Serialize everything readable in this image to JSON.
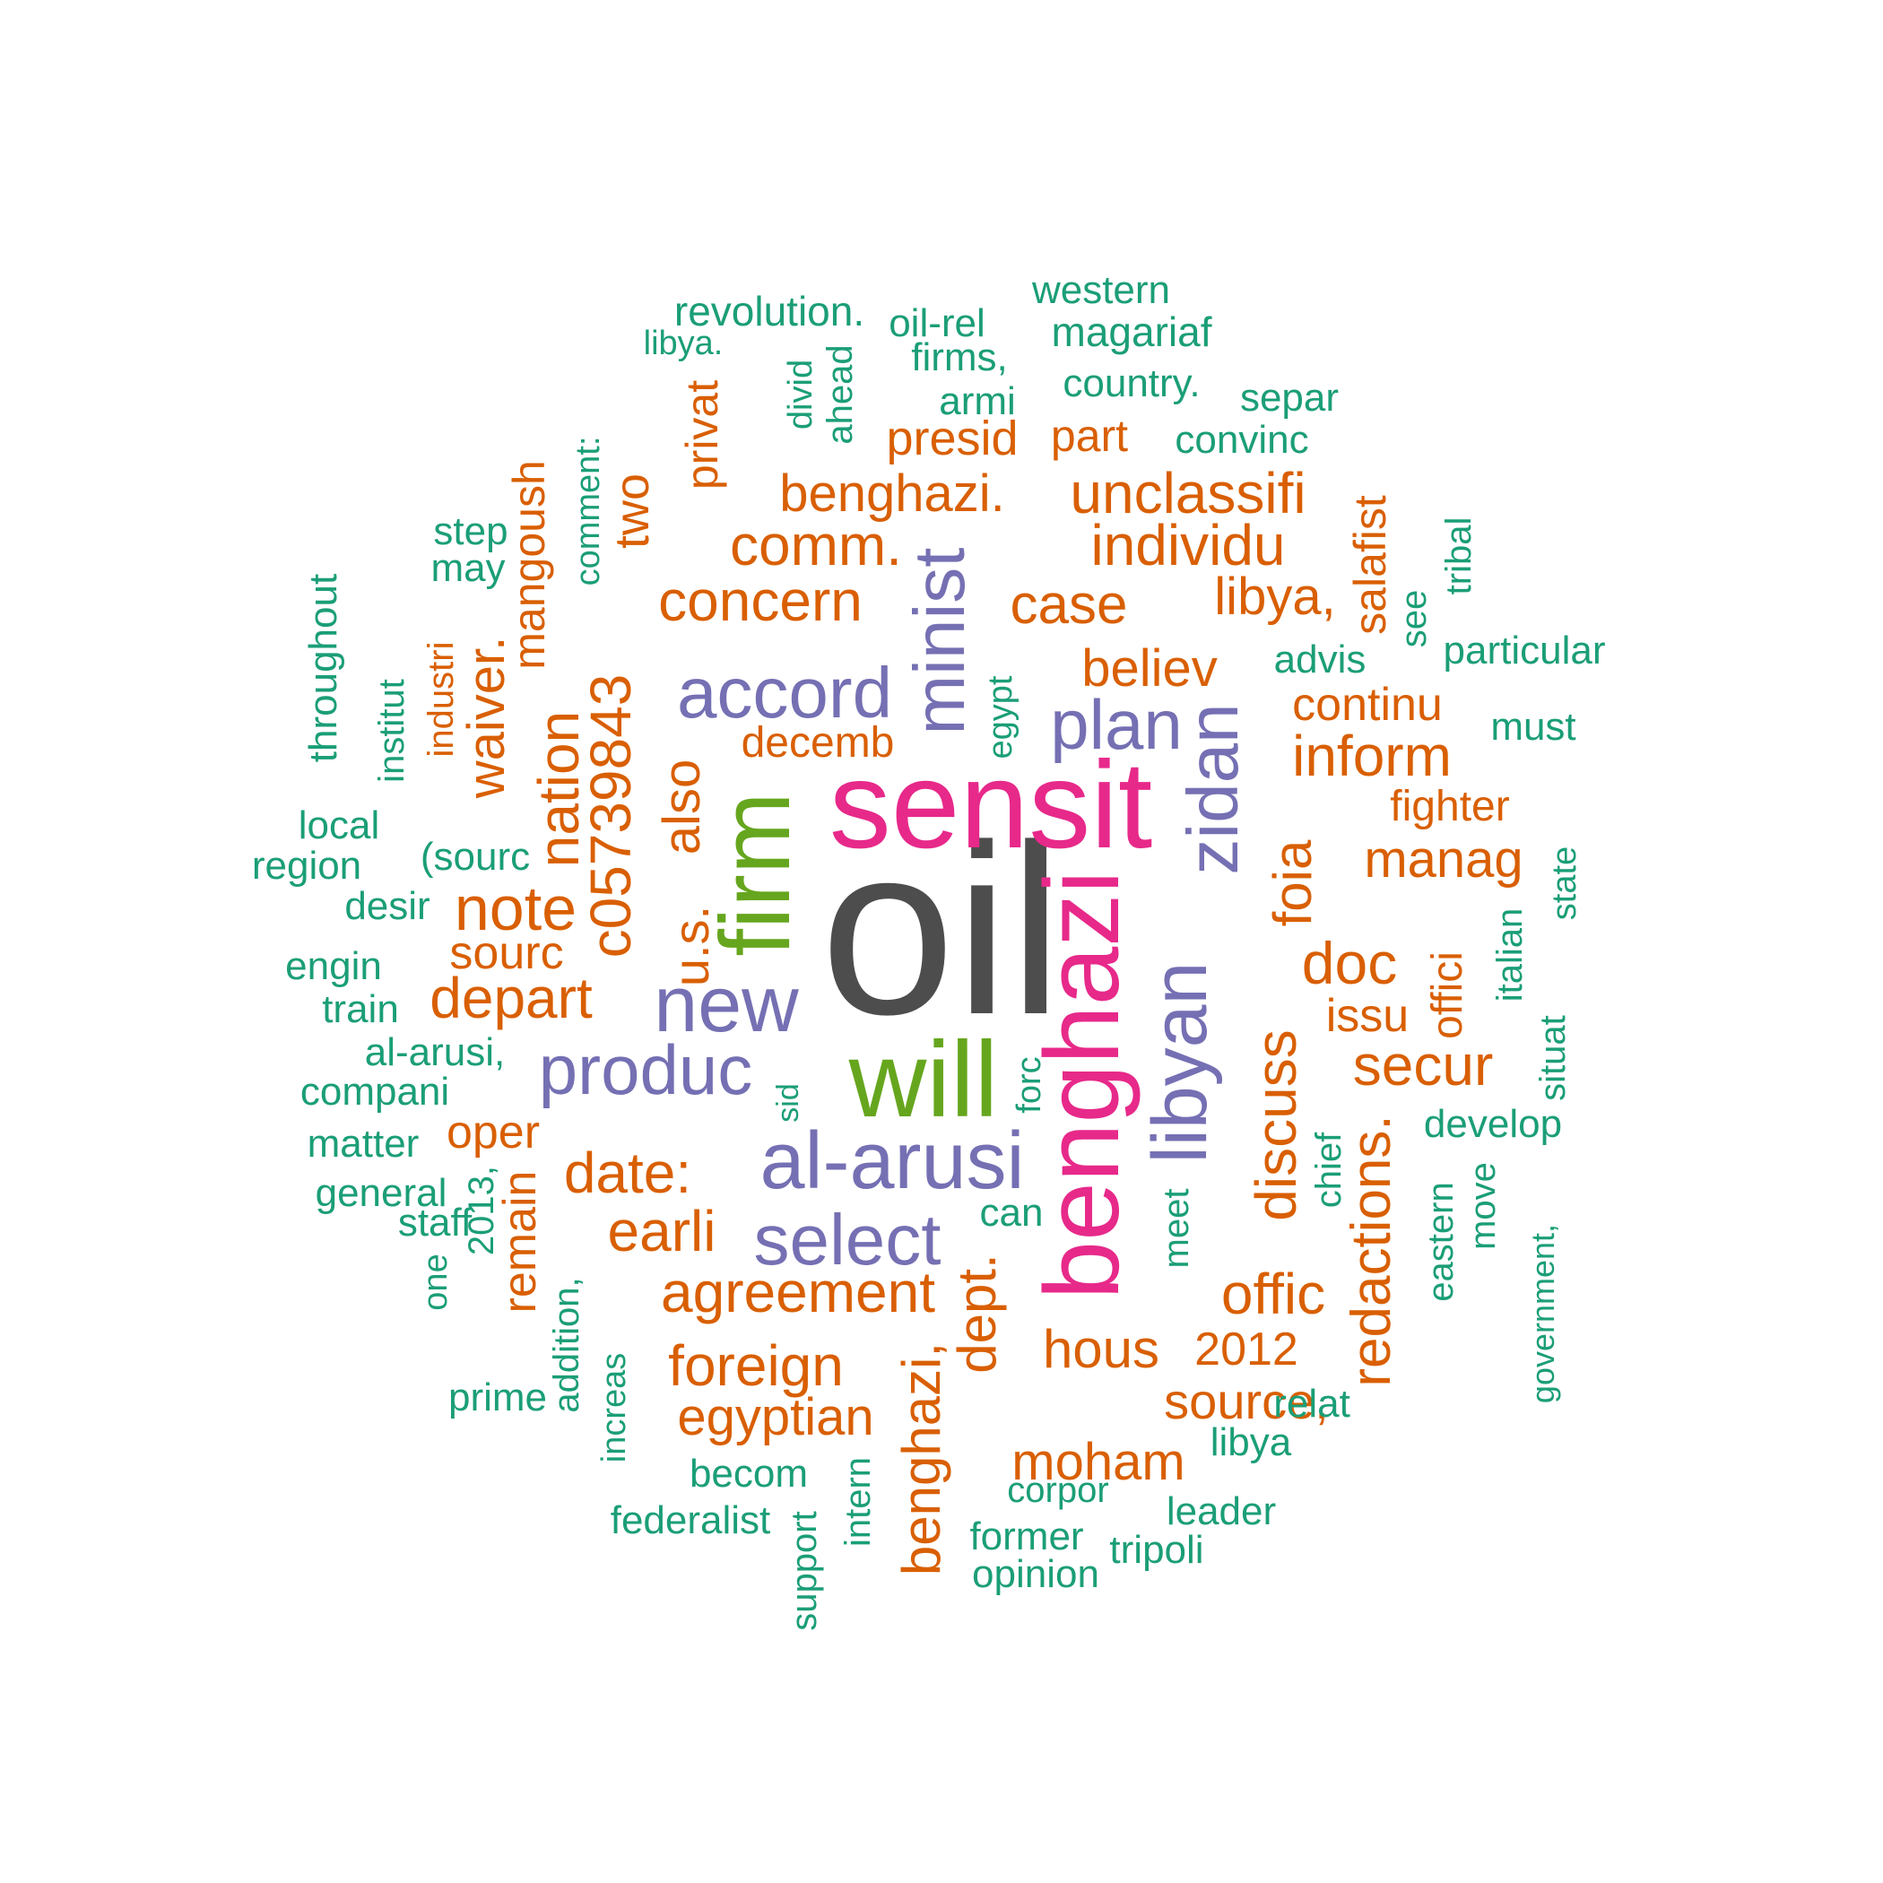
{
  "palette": {
    "dark": "#4d4d4d",
    "pink": "#e7298a",
    "green": "#66a61e",
    "purple": "#7570b3",
    "orange": "#d95f02",
    "teal": "#1b9e77"
  },
  "words": [
    {
      "text": "oil",
      "color": "dark"
    },
    {
      "text": "sensit",
      "color": "pink"
    },
    {
      "text": "benghazi",
      "color": "pink"
    },
    {
      "text": "will",
      "color": "green"
    },
    {
      "text": "firm",
      "color": "green"
    },
    {
      "text": "al-arusi",
      "color": "purple"
    },
    {
      "text": "new",
      "color": "purple"
    },
    {
      "text": "produc",
      "color": "purple"
    },
    {
      "text": "select",
      "color": "purple"
    },
    {
      "text": "accord",
      "color": "purple"
    },
    {
      "text": "minist",
      "color": "purple"
    },
    {
      "text": "plan",
      "color": "purple"
    },
    {
      "text": "zidan",
      "color": "purple"
    },
    {
      "text": "libyan",
      "color": "purple"
    },
    {
      "text": "unclassifi",
      "color": "orange"
    },
    {
      "text": "individu",
      "color": "orange"
    },
    {
      "text": "benghazi.",
      "color": "orange"
    },
    {
      "text": "comm.",
      "color": "orange"
    },
    {
      "text": "concern",
      "color": "orange"
    },
    {
      "text": "case",
      "color": "orange"
    },
    {
      "text": "libya,",
      "color": "orange"
    },
    {
      "text": "presid",
      "color": "orange"
    },
    {
      "text": "part",
      "color": "orange"
    },
    {
      "text": "believ",
      "color": "orange"
    },
    {
      "text": "continu",
      "color": "orange"
    },
    {
      "text": "inform",
      "color": "orange"
    },
    {
      "text": "decemb",
      "color": "orange"
    },
    {
      "text": "fighter",
      "color": "orange"
    },
    {
      "text": "manag",
      "color": "orange"
    },
    {
      "text": "doc",
      "color": "orange"
    },
    {
      "text": "issu",
      "color": "orange"
    },
    {
      "text": "secur",
      "color": "orange"
    },
    {
      "text": "note",
      "color": "orange"
    },
    {
      "text": "sourc",
      "color": "orange"
    },
    {
      "text": "depart",
      "color": "orange"
    },
    {
      "text": "oper",
      "color": "orange"
    },
    {
      "text": "date:",
      "color": "orange"
    },
    {
      "text": "earli",
      "color": "orange"
    },
    {
      "text": "agreement",
      "color": "orange"
    },
    {
      "text": "foreign",
      "color": "orange"
    },
    {
      "text": "egyptian",
      "color": "orange"
    },
    {
      "text": "hous",
      "color": "orange"
    },
    {
      "text": "2012",
      "color": "orange"
    },
    {
      "text": "offic",
      "color": "orange"
    },
    {
      "text": "source,",
      "color": "orange"
    },
    {
      "text": "moham",
      "color": "orange"
    },
    {
      "text": "c05739843",
      "color": "orange"
    },
    {
      "text": "u.s.",
      "color": "orange"
    },
    {
      "text": "also",
      "color": "orange"
    },
    {
      "text": "nation",
      "color": "orange"
    },
    {
      "text": "waiver.",
      "color": "orange"
    },
    {
      "text": "mangoush",
      "color": "orange"
    },
    {
      "text": "two",
      "color": "orange"
    },
    {
      "text": "privat",
      "color": "orange"
    },
    {
      "text": "industri",
      "color": "orange"
    },
    {
      "text": "salafist",
      "color": "orange"
    },
    {
      "text": "foia",
      "color": "orange"
    },
    {
      "text": "offici",
      "color": "orange"
    },
    {
      "text": "discuss",
      "color": "orange"
    },
    {
      "text": "redactions.",
      "color": "orange"
    },
    {
      "text": "dept.",
      "color": "orange"
    },
    {
      "text": "benghazi,",
      "color": "orange"
    },
    {
      "text": "remain",
      "color": "orange"
    },
    {
      "text": "revolution.",
      "color": "teal"
    },
    {
      "text": "libya.",
      "color": "teal"
    },
    {
      "text": "oil-rel",
      "color": "teal"
    },
    {
      "text": "western",
      "color": "teal"
    },
    {
      "text": "magariaf",
      "color": "teal"
    },
    {
      "text": "firms,",
      "color": "teal"
    },
    {
      "text": "country.",
      "color": "teal"
    },
    {
      "text": "armi",
      "color": "teal"
    },
    {
      "text": "separ",
      "color": "teal"
    },
    {
      "text": "convinc",
      "color": "teal"
    },
    {
      "text": "step",
      "color": "teal"
    },
    {
      "text": "may",
      "color": "teal"
    },
    {
      "text": "advis",
      "color": "teal"
    },
    {
      "text": "particular",
      "color": "teal"
    },
    {
      "text": "must",
      "color": "teal"
    },
    {
      "text": "local",
      "color": "teal"
    },
    {
      "text": "region",
      "color": "teal"
    },
    {
      "text": "(sourc",
      "color": "teal"
    },
    {
      "text": "desir",
      "color": "teal"
    },
    {
      "text": "engin",
      "color": "teal"
    },
    {
      "text": "train",
      "color": "teal"
    },
    {
      "text": "al-arusi,",
      "color": "teal"
    },
    {
      "text": "compani",
      "color": "teal"
    },
    {
      "text": "matter",
      "color": "teal"
    },
    {
      "text": "general",
      "color": "teal"
    },
    {
      "text": "staff",
      "color": "teal"
    },
    {
      "text": "develop",
      "color": "teal"
    },
    {
      "text": "can",
      "color": "teal"
    },
    {
      "text": "prime",
      "color": "teal"
    },
    {
      "text": "becom",
      "color": "teal"
    },
    {
      "text": "corpor",
      "color": "teal"
    },
    {
      "text": "leader",
      "color": "teal"
    },
    {
      "text": "libya",
      "color": "teal"
    },
    {
      "text": "relat",
      "color": "teal"
    },
    {
      "text": "federalist",
      "color": "teal"
    },
    {
      "text": "former",
      "color": "teal"
    },
    {
      "text": "tripoli",
      "color": "teal"
    },
    {
      "text": "opinion",
      "color": "teal"
    },
    {
      "text": "throughout",
      "color": "teal"
    },
    {
      "text": "institut",
      "color": "teal"
    },
    {
      "text": "comment:",
      "color": "teal"
    },
    {
      "text": "divid",
      "color": "teal"
    },
    {
      "text": "ahead",
      "color": "teal"
    },
    {
      "text": "egypt",
      "color": "teal"
    },
    {
      "text": "tribal",
      "color": "teal"
    },
    {
      "text": "see",
      "color": "teal"
    },
    {
      "text": "state",
      "color": "teal"
    },
    {
      "text": "italian",
      "color": "teal"
    },
    {
      "text": "situat",
      "color": "teal"
    },
    {
      "text": "sid",
      "color": "teal"
    },
    {
      "text": "forc",
      "color": "teal"
    },
    {
      "text": "chief",
      "color": "teal"
    },
    {
      "text": "meet",
      "color": "teal"
    },
    {
      "text": "eastern",
      "color": "teal"
    },
    {
      "text": "move",
      "color": "teal"
    },
    {
      "text": "government,",
      "color": "teal"
    },
    {
      "text": "2013,",
      "color": "teal"
    },
    {
      "text": "one",
      "color": "teal"
    },
    {
      "text": "addition,",
      "color": "teal"
    },
    {
      "text": "increas",
      "color": "teal"
    },
    {
      "text": "support",
      "color": "teal"
    },
    {
      "text": "intern",
      "color": "teal"
    }
  ]
}
